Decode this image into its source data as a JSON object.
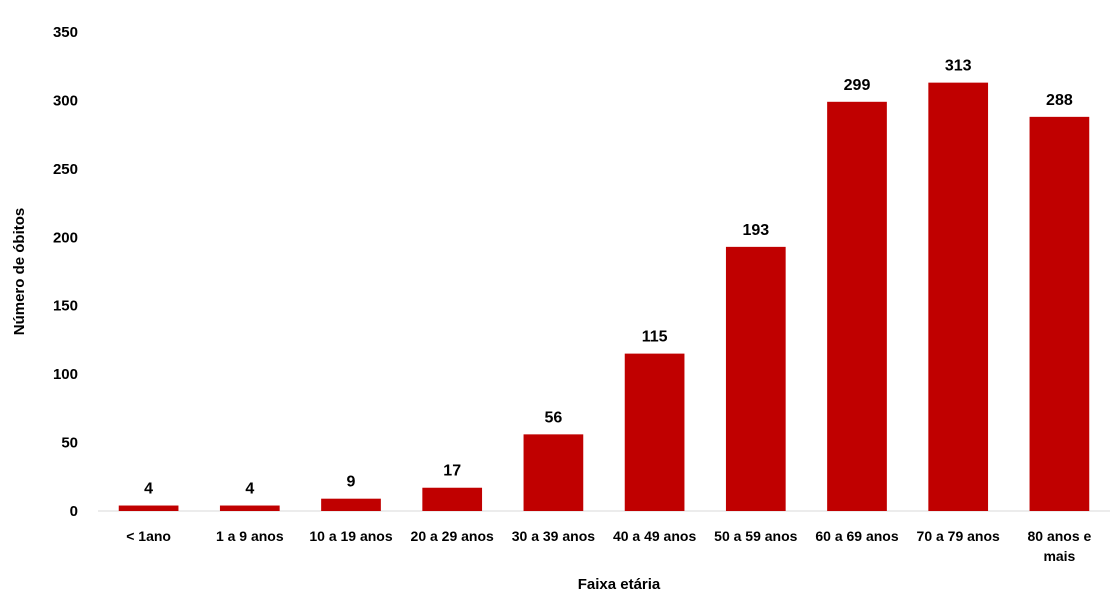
{
  "chart_data": {
    "type": "bar",
    "categories": [
      "< 1ano",
      "1 a 9 anos",
      "10 a 19 anos",
      "20 a 29 anos",
      "30 a 39 anos",
      "40 a 49 anos",
      "50 a 59 anos",
      "60 a 69 anos",
      "70 a 79 anos",
      "80 anos e mais"
    ],
    "values": [
      4,
      4,
      9,
      17,
      56,
      115,
      193,
      299,
      313,
      288
    ],
    "title": "",
    "xlabel": "Faixa etária",
    "ylabel": "Número de óbitos",
    "ylim": [
      0,
      350
    ],
    "yticks": [
      0,
      50,
      100,
      150,
      200,
      250,
      300,
      350
    ],
    "data_labels": true,
    "grid": false,
    "legend": "none",
    "bar_color": "#C00000"
  }
}
